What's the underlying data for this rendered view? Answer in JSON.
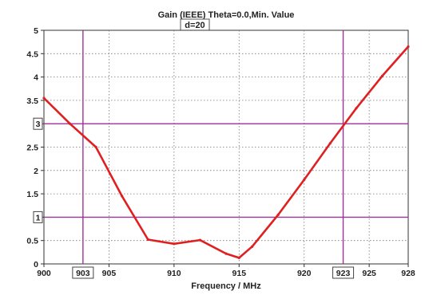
{
  "chart_data": {
    "type": "line",
    "title": "Gain (IEEE) Theta=0.0,Min. Value",
    "subtitle": "d=20",
    "xlabel": "Frequency / MHz",
    "ylabel": "",
    "xlim": [
      900,
      928
    ],
    "ylim": [
      0,
      5
    ],
    "xticks": [
      "900",
      "905",
      "910",
      "915",
      "920",
      "925",
      "928"
    ],
    "yticks": [
      "0",
      "0.5",
      "1",
      "1.5",
      "2",
      "2.5",
      "3",
      "3.5",
      "4",
      "4.5",
      "5"
    ],
    "grid": true,
    "series": [
      {
        "color": "#e02020",
        "x": [
          900,
          902,
          904,
          906,
          908,
          910,
          912,
          914,
          915,
          916,
          918,
          920,
          922,
          924,
          926,
          928
        ],
        "y": [
          3.55,
          3.0,
          2.5,
          1.45,
          0.52,
          0.43,
          0.51,
          0.22,
          0.13,
          0.37,
          1.05,
          1.8,
          2.58,
          3.33,
          4.02,
          4.65
        ]
      }
    ],
    "markers": {
      "color": "#a0309a",
      "horizontal": [
        {
          "value": 1,
          "label": "1"
        },
        {
          "value": 3,
          "label": "3"
        }
      ],
      "vertical": [
        {
          "value": 903,
          "label": "903"
        },
        {
          "value": 923,
          "label": "923"
        }
      ]
    }
  }
}
